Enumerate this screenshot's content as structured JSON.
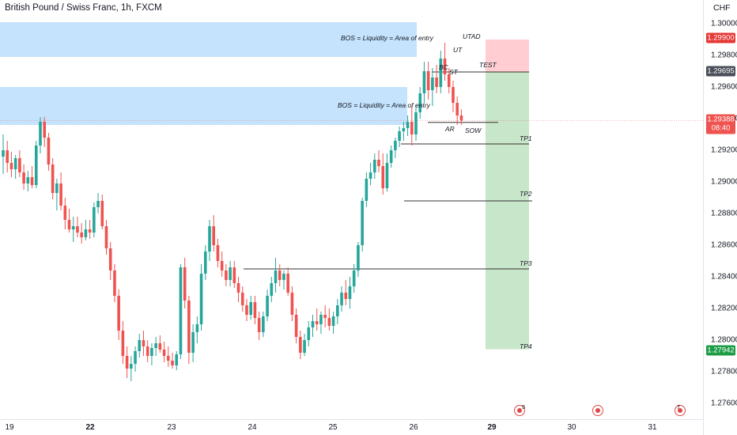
{
  "header": {
    "title": "British Pound / Swiss Franc, 1h, FXCM",
    "currency": "CHF"
  },
  "price_axis": {
    "ticks": [
      "1.30000",
      "1.29800",
      "1.29600",
      "1.29400",
      "1.29200",
      "1.29000",
      "1.28800",
      "1.28600",
      "1.28400",
      "1.28200",
      "1.28000",
      "1.27800",
      "1.27600"
    ],
    "tick_values": [
      1.3,
      1.298,
      1.296,
      1.294,
      1.292,
      1.29,
      1.288,
      1.286,
      1.284,
      1.282,
      1.28,
      1.278,
      1.276
    ]
  },
  "time_axis": {
    "labels": [
      {
        "label": "19",
        "bold": false
      },
      {
        "label": "22",
        "bold": true
      },
      {
        "label": "23",
        "bold": false
      },
      {
        "label": "24",
        "bold": false
      },
      {
        "label": "25",
        "bold": false
      },
      {
        "label": "26",
        "bold": false
      },
      {
        "label": "29",
        "bold": true
      },
      {
        "label": "30",
        "bold": false
      },
      {
        "label": "31",
        "bold": false
      }
    ]
  },
  "badges": {
    "stop": "1.29900",
    "entry": "1.29695",
    "last_price": "1.29388",
    "countdown": "08:40",
    "target": "1.27942"
  },
  "annotations": {
    "bos_top": "BOS = Liquidity = Area of entry",
    "bos_mid": "BOS = Liquidity = Area of entry",
    "utad": "UTAD",
    "ut": "UT",
    "bc": "BC",
    "st": "ST",
    "test": "TEST",
    "ar": "AR",
    "sow": "SOW",
    "tp1": "TP1",
    "tp2": "TP2",
    "tp3": "TP3",
    "tp4": "TP4"
  },
  "events": [
    {
      "name": "event-group-1",
      "count": "5"
    },
    {
      "name": "event-single",
      "count": ""
    },
    {
      "name": "event-group-2",
      "count": "7"
    }
  ],
  "colors": {
    "up": "#26a69a",
    "down": "#ef5350",
    "zone": "#bbdefb",
    "stop_zone": "#ffcdd2",
    "profit_zone": "#c8e6c9",
    "entry_badge": "#4a4e58",
    "target_badge": "#1c9c46"
  },
  "chart_data": {
    "type": "candlestick",
    "title": "British Pound / Swiss Franc, 1h, FXCM",
    "ylabel": "CHF",
    "ylim": [
      1.2745,
      1.3003
    ],
    "x_ticks": [
      "19",
      "22",
      "23",
      "24",
      "25",
      "26",
      "29",
      "30",
      "31"
    ],
    "ohlc": [
      [
        1.2916,
        1.293,
        1.2905,
        1.292
      ],
      [
        1.292,
        1.2926,
        1.2906,
        1.2912
      ],
      [
        1.2912,
        1.2919,
        1.2903,
        1.2908
      ],
      [
        1.2908,
        1.2917,
        1.2902,
        1.2915
      ],
      [
        1.2915,
        1.292,
        1.2903,
        1.2906
      ],
      [
        1.2906,
        1.2911,
        1.2895,
        1.2899
      ],
      [
        1.2899,
        1.2907,
        1.2894,
        1.2903
      ],
      [
        1.2903,
        1.291,
        1.2896,
        1.2898
      ],
      [
        1.2898,
        1.2926,
        1.2896,
        1.2923
      ],
      [
        1.2923,
        1.2941,
        1.2918,
        1.2938
      ],
      [
        1.2938,
        1.2941,
        1.2922,
        1.2928
      ],
      [
        1.2928,
        1.2931,
        1.2907,
        1.2911
      ],
      [
        1.2911,
        1.2915,
        1.2889,
        1.2893
      ],
      [
        1.2893,
        1.2902,
        1.2882,
        1.2899
      ],
      [
        1.2899,
        1.2906,
        1.2882,
        1.2885
      ],
      [
        1.2885,
        1.289,
        1.287,
        1.2876
      ],
      [
        1.2876,
        1.2883,
        1.2868,
        1.287
      ],
      [
        1.287,
        1.2878,
        1.2862,
        1.2872
      ],
      [
        1.2872,
        1.2878,
        1.2865,
        1.2868
      ],
      [
        1.2868,
        1.2874,
        1.2861,
        1.2865
      ],
      [
        1.2865,
        1.2876,
        1.2863,
        1.287
      ],
      [
        1.287,
        1.2876,
        1.2864,
        1.2868
      ],
      [
        1.2868,
        1.2887,
        1.2865,
        1.2884
      ],
      [
        1.2884,
        1.2893,
        1.288,
        1.2888
      ],
      [
        1.2888,
        1.2892,
        1.287,
        1.2872
      ],
      [
        1.2872,
        1.2876,
        1.2854,
        1.2858
      ],
      [
        1.2858,
        1.2862,
        1.2838,
        1.2844
      ],
      [
        1.2844,
        1.2848,
        1.2824,
        1.2828
      ],
      [
        1.2828,
        1.2832,
        1.28,
        1.2806
      ],
      [
        1.2806,
        1.2812,
        1.2785,
        1.279
      ],
      [
        1.279,
        1.2796,
        1.2776,
        1.2782
      ],
      [
        1.2782,
        1.279,
        1.2774,
        1.2785
      ],
      [
        1.2785,
        1.2796,
        1.278,
        1.2793
      ],
      [
        1.2793,
        1.2804,
        1.2789,
        1.28
      ],
      [
        1.28,
        1.2806,
        1.279,
        1.2796
      ],
      [
        1.2796,
        1.28,
        1.2786,
        1.279
      ],
      [
        1.279,
        1.2798,
        1.2784,
        1.2795
      ],
      [
        1.2795,
        1.2802,
        1.279,
        1.2798
      ],
      [
        1.2798,
        1.2803,
        1.2792,
        1.2794
      ],
      [
        1.2794,
        1.2799,
        1.2786,
        1.279
      ],
      [
        1.279,
        1.2796,
        1.2783,
        1.2787
      ],
      [
        1.2787,
        1.2792,
        1.2782,
        1.2784
      ],
      [
        1.2784,
        1.2793,
        1.2781,
        1.2791
      ],
      [
        1.2791,
        1.2848,
        1.2788,
        1.2846
      ],
      [
        1.2846,
        1.2852,
        1.282,
        1.2825
      ],
      [
        1.2825,
        1.2828,
        1.2785,
        1.2792
      ],
      [
        1.2792,
        1.281,
        1.2786,
        1.2805
      ],
      [
        1.2805,
        1.2815,
        1.2798,
        1.281
      ],
      [
        1.281,
        1.2848,
        1.2806,
        1.2842
      ],
      [
        1.2842,
        1.286,
        1.2838,
        1.2856
      ],
      [
        1.2856,
        1.2876,
        1.285,
        1.2872
      ],
      [
        1.2872,
        1.2879,
        1.2856,
        1.286
      ],
      [
        1.286,
        1.2864,
        1.2846,
        1.285
      ],
      [
        1.285,
        1.2856,
        1.284,
        1.2844
      ],
      [
        1.2844,
        1.2848,
        1.2834,
        1.2838
      ],
      [
        1.2838,
        1.285,
        1.2834,
        1.2846
      ],
      [
        1.2846,
        1.285,
        1.2833,
        1.2836
      ],
      [
        1.2836,
        1.284,
        1.2824,
        1.283
      ],
      [
        1.283,
        1.2834,
        1.2818,
        1.2822
      ],
      [
        1.2822,
        1.2826,
        1.2812,
        1.2816
      ],
      [
        1.2816,
        1.2828,
        1.2813,
        1.2824
      ],
      [
        1.2824,
        1.2828,
        1.281,
        1.2814
      ],
      [
        1.2814,
        1.2818,
        1.28,
        1.2805
      ],
      [
        1.2805,
        1.2818,
        1.2802,
        1.2815
      ],
      [
        1.2815,
        1.2832,
        1.2812,
        1.2828
      ],
      [
        1.2828,
        1.284,
        1.2824,
        1.2836
      ],
      [
        1.2836,
        1.2852,
        1.283,
        1.2844
      ],
      [
        1.2844,
        1.2848,
        1.2834,
        1.2838
      ],
      [
        1.2838,
        1.2844,
        1.2832,
        1.2842
      ],
      [
        1.2842,
        1.2846,
        1.2828,
        1.283
      ],
      [
        1.283,
        1.2834,
        1.2812,
        1.2816
      ],
      [
        1.2816,
        1.282,
        1.2798,
        1.2802
      ],
      [
        1.2802,
        1.2806,
        1.2788,
        1.2792
      ],
      [
        1.2792,
        1.2804,
        1.279,
        1.28
      ],
      [
        1.28,
        1.2812,
        1.2796,
        1.2808
      ],
      [
        1.2808,
        1.2816,
        1.2802,
        1.2812
      ],
      [
        1.2812,
        1.282,
        1.2806,
        1.281
      ],
      [
        1.281,
        1.2818,
        1.2804,
        1.2816
      ],
      [
        1.2816,
        1.2822,
        1.2808,
        1.2814
      ],
      [
        1.2814,
        1.282,
        1.2806,
        1.2809
      ],
      [
        1.2809,
        1.2818,
        1.2804,
        1.2815
      ],
      [
        1.2815,
        1.2826,
        1.281,
        1.2822
      ],
      [
        1.2822,
        1.2834,
        1.2818,
        1.283
      ],
      [
        1.283,
        1.2838,
        1.2822,
        1.2826
      ],
      [
        1.2826,
        1.284,
        1.282,
        1.2834
      ],
      [
        1.2834,
        1.2848,
        1.283,
        1.2844
      ],
      [
        1.2844,
        1.2862,
        1.284,
        1.286
      ],
      [
        1.286,
        1.289,
        1.2856,
        1.2888
      ],
      [
        1.2888,
        1.2906,
        1.2884,
        1.2902
      ],
      [
        1.2902,
        1.2912,
        1.2898,
        1.2906
      ],
      [
        1.2906,
        1.2918,
        1.2902,
        1.2914
      ],
      [
        1.2914,
        1.292,
        1.2906,
        1.291
      ],
      [
        1.291,
        1.2918,
        1.2892,
        1.2896
      ],
      [
        1.2896,
        1.2918,
        1.2894,
        1.2912
      ],
      [
        1.2912,
        1.2923,
        1.2909,
        1.292
      ],
      [
        1.292,
        1.2928,
        1.2915,
        1.2926
      ],
      [
        1.2926,
        1.2935,
        1.2922,
        1.2932
      ],
      [
        1.2932,
        1.2938,
        1.2926,
        1.2934
      ],
      [
        1.2934,
        1.2942,
        1.2929,
        1.2938
      ],
      [
        1.2938,
        1.2948,
        1.2923,
        1.293
      ],
      [
        1.293,
        1.2949,
        1.2926,
        1.2944
      ],
      [
        1.2944,
        1.296,
        1.294,
        1.2956
      ],
      [
        1.2956,
        1.2976,
        1.295,
        1.297
      ],
      [
        1.297,
        1.2976,
        1.2952,
        1.2958
      ],
      [
        1.2958,
        1.2972,
        1.2948,
        1.2966
      ],
      [
        1.2966,
        1.2974,
        1.2956,
        1.296
      ],
      [
        1.296,
        1.2983,
        1.2956,
        1.2978
      ],
      [
        1.2978,
        1.2988,
        1.2964,
        1.2968
      ],
      [
        1.2968,
        1.2972,
        1.2956,
        1.296
      ],
      [
        1.296,
        1.2964,
        1.2944,
        1.295
      ],
      [
        1.295,
        1.2954,
        1.2936,
        1.2942
      ],
      [
        1.2942,
        1.2946,
        1.2936,
        1.29388
      ]
    ],
    "zones": [
      {
        "label": "BOS = Liquidity = Area of entry",
        "low": 1.2979,
        "high": 1.3001
      },
      {
        "label": "BOS = Liquidity = Area of entry",
        "low": 1.2936,
        "high": 1.296
      }
    ],
    "trade": {
      "entry": 1.29695,
      "stop": 1.299,
      "target": 1.27942
    },
    "targets": [
      {
        "label": "TP1",
        "price": 1.2924
      },
      {
        "label": "TP2",
        "price": 1.2888
      },
      {
        "label": "TP3",
        "price": 1.2845
      },
      {
        "label": "TP4",
        "price": 1.27942
      }
    ],
    "wyckoff_labels": [
      "UTAD",
      "UT",
      "BC",
      "ST",
      "TEST",
      "AR",
      "SOW"
    ]
  }
}
